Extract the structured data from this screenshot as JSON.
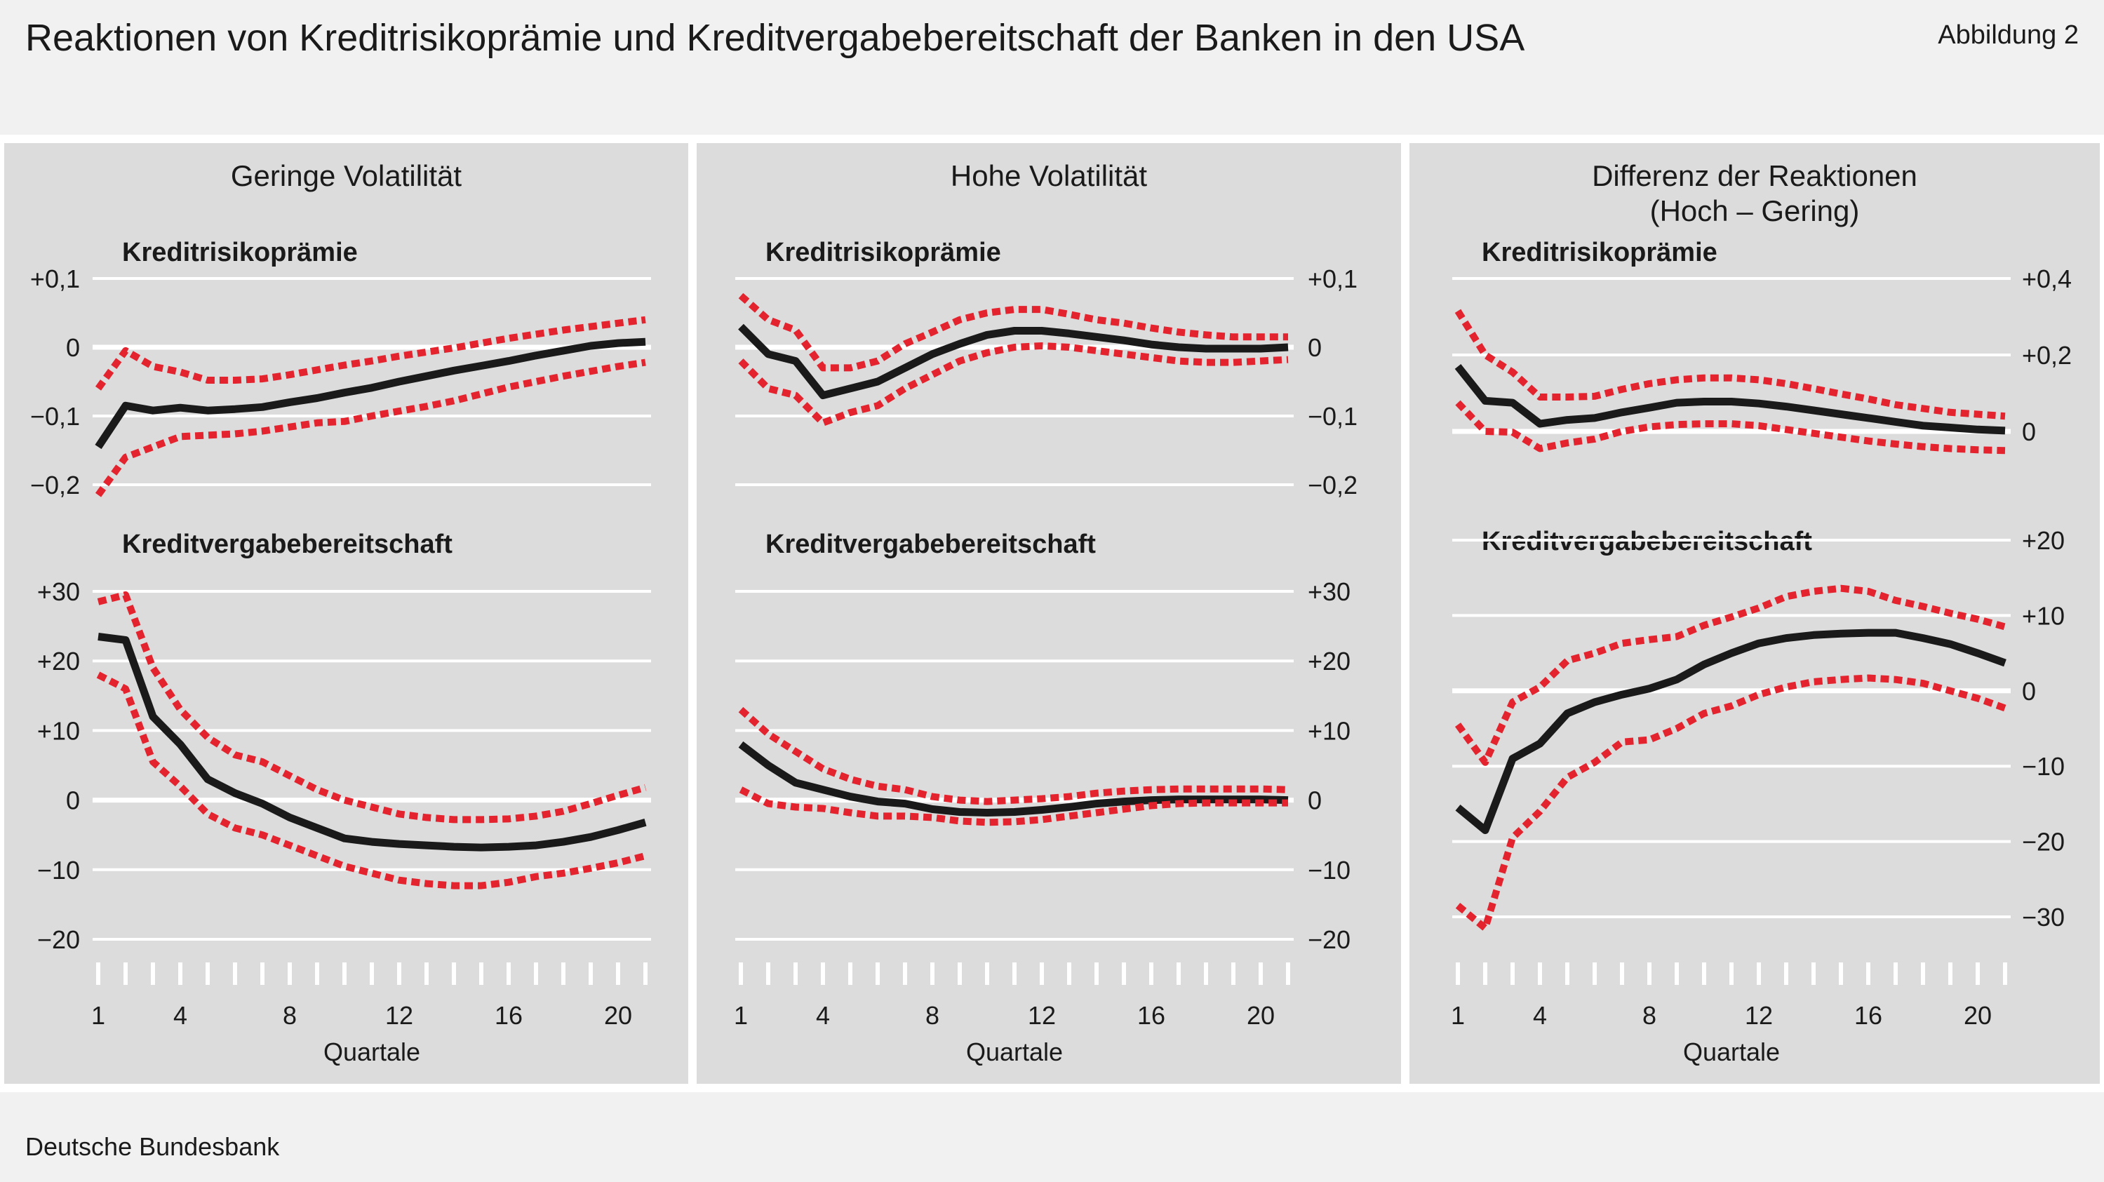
{
  "title": "Reaktionen von Kreditrisikoprämie und Kreditvergabebereitschaft der Banken in den USA",
  "figure_label": "Abbildung 2",
  "source": "Deutsche Bundesbank",
  "colors": {
    "background": "#f1f1f1",
    "panel": "#dcdcdc",
    "gridline": "#ffffff",
    "response": "#1a1a1a",
    "confidence_band": "#e3242f"
  },
  "chart_data": [
    {
      "type": "line",
      "panel_title": "Geringe Volatilität",
      "xlabel": "Quartale",
      "x": [
        1,
        2,
        3,
        4,
        5,
        6,
        7,
        8,
        9,
        10,
        11,
        12,
        13,
        14,
        15,
        16,
        17,
        18,
        19,
        20,
        21
      ],
      "x_ticks": [
        1,
        4,
        8,
        12,
        16,
        20
      ],
      "subcharts": [
        {
          "label": "Kreditrisikoprämie",
          "ylim": [
            -0.2,
            0.1
          ],
          "y_ticks": [
            {
              "value": 0.1,
              "label": "+0,1"
            },
            {
              "value": 0,
              "label": "0"
            },
            {
              "value": -0.1,
              "label": "−0,1"
            },
            {
              "value": -0.2,
              "label": "−0,2"
            }
          ],
          "series": [
            {
              "role": "response",
              "values": [
                -0.145,
                -0.085,
                -0.092,
                -0.088,
                -0.092,
                -0.09,
                -0.087,
                -0.08,
                -0.074,
                -0.066,
                -0.059,
                -0.05,
                -0.042,
                -0.034,
                -0.027,
                -0.02,
                -0.012,
                -0.005,
                0.002,
                0.006,
                0.008
              ]
            },
            {
              "role": "upper",
              "values": [
                -0.06,
                -0.005,
                -0.028,
                -0.036,
                -0.048,
                -0.048,
                -0.046,
                -0.04,
                -0.033,
                -0.026,
                -0.02,
                -0.013,
                -0.007,
                -0.001,
                0.006,
                0.013,
                0.019,
                0.025,
                0.03,
                0.035,
                0.04
              ]
            },
            {
              "role": "lower",
              "values": [
                -0.215,
                -0.16,
                -0.145,
                -0.13,
                -0.128,
                -0.126,
                -0.122,
                -0.116,
                -0.11,
                -0.108,
                -0.1,
                -0.093,
                -0.086,
                -0.078,
                -0.068,
                -0.058,
                -0.05,
                -0.042,
                -0.035,
                -0.028,
                -0.022
              ]
            }
          ]
        },
        {
          "label": "Kreditvergabebereitschaft",
          "ylim": [
            -20,
            30
          ],
          "y_ticks": [
            {
              "value": 30,
              "label": "+30"
            },
            {
              "value": 20,
              "label": "+20"
            },
            {
              "value": 10,
              "label": "+10"
            },
            {
              "value": 0,
              "label": "0"
            },
            {
              "value": -10,
              "label": "−10"
            },
            {
              "value": -20,
              "label": "−20"
            }
          ],
          "series": [
            {
              "role": "response",
              "values": [
                23.5,
                23,
                12,
                8,
                3,
                1,
                -0.5,
                -2.5,
                -4,
                -5.5,
                -6,
                -6.3,
                -6.5,
                -6.7,
                -6.8,
                -6.7,
                -6.5,
                -6,
                -5.3,
                -4.3,
                -3.2
              ]
            },
            {
              "role": "upper",
              "values": [
                28.5,
                29.5,
                19,
                13,
                9,
                6.5,
                5.5,
                3.5,
                1.5,
                0,
                -1,
                -2,
                -2.5,
                -2.8,
                -2.8,
                -2.7,
                -2.3,
                -1.6,
                -0.5,
                0.7,
                1.8
              ]
            },
            {
              "role": "lower",
              "values": [
                18,
                16,
                5.5,
                2,
                -2,
                -4,
                -5,
                -6.5,
                -8,
                -9.5,
                -10.5,
                -11.5,
                -12,
                -12.3,
                -12.3,
                -11.8,
                -11,
                -10.5,
                -9.8,
                -9,
                -8
              ]
            }
          ]
        }
      ]
    },
    {
      "type": "line",
      "panel_title": "Hohe Volatilität",
      "xlabel": "Quartale",
      "x": [
        1,
        2,
        3,
        4,
        5,
        6,
        7,
        8,
        9,
        10,
        11,
        12,
        13,
        14,
        15,
        16,
        17,
        18,
        19,
        20,
        21
      ],
      "x_ticks": [
        1,
        4,
        8,
        12,
        16,
        20
      ],
      "subcharts": [
        {
          "label": "Kreditrisikoprämie",
          "ylim": [
            -0.2,
            0.1
          ],
          "y_ticks": [
            {
              "value": 0.1,
              "label": "+0,1"
            },
            {
              "value": 0,
              "label": "0"
            },
            {
              "value": -0.1,
              "label": "−0,1"
            },
            {
              "value": -0.2,
              "label": "−0,2"
            }
          ],
          "series": [
            {
              "role": "response",
              "values": [
                0.03,
                -0.01,
                -0.02,
                -0.07,
                -0.06,
                -0.05,
                -0.03,
                -0.01,
                0.005,
                0.018,
                0.024,
                0.024,
                0.02,
                0.015,
                0.01,
                0.004,
                0,
                -0.002,
                -0.002,
                -0.002,
                0
              ]
            },
            {
              "role": "upper",
              "values": [
                0.075,
                0.04,
                0.025,
                -0.03,
                -0.03,
                -0.02,
                0.005,
                0.022,
                0.04,
                0.05,
                0.055,
                0.055,
                0.048,
                0.04,
                0.035,
                0.028,
                0.022,
                0.018,
                0.015,
                0.015,
                0.015
              ]
            },
            {
              "role": "lower",
              "values": [
                -0.02,
                -0.06,
                -0.07,
                -0.11,
                -0.095,
                -0.085,
                -0.06,
                -0.04,
                -0.02,
                -0.008,
                0,
                0.002,
                0,
                -0.005,
                -0.01,
                -0.015,
                -0.02,
                -0.022,
                -0.022,
                -0.02,
                -0.018
              ]
            }
          ]
        },
        {
          "label": "Kreditvergabebereitschaft",
          "ylim": [
            -20,
            30
          ],
          "y_ticks": [
            {
              "value": 30,
              "label": "+30"
            },
            {
              "value": 20,
              "label": "+20"
            },
            {
              "value": 10,
              "label": "+10"
            },
            {
              "value": 0,
              "label": "0"
            },
            {
              "value": -10,
              "label": "−10"
            },
            {
              "value": -20,
              "label": "−20"
            }
          ],
          "series": [
            {
              "role": "response",
              "values": [
                8,
                5,
                2.5,
                1.5,
                0.5,
                -0.2,
                -0.5,
                -1.3,
                -1.7,
                -1.8,
                -1.7,
                -1.4,
                -1,
                -0.5,
                -0.2,
                0,
                0.1,
                0.1,
                0.1,
                0.1,
                0
              ]
            },
            {
              "role": "upper",
              "values": [
                13,
                9.5,
                7,
                4.5,
                3,
                2,
                1.5,
                0.5,
                0,
                -0.2,
                0,
                0.2,
                0.5,
                1,
                1.3,
                1.5,
                1.6,
                1.6,
                1.6,
                1.6,
                1.5
              ]
            },
            {
              "role": "lower",
              "values": [
                1.5,
                -0.5,
                -1,
                -1.2,
                -1.8,
                -2.3,
                -2.3,
                -2.5,
                -3,
                -3.2,
                -3.1,
                -2.8,
                -2.3,
                -1.8,
                -1.3,
                -0.8,
                -0.5,
                -0.4,
                -0.4,
                -0.4,
                -0.4
              ]
            }
          ]
        }
      ]
    },
    {
      "type": "line",
      "panel_title_lines": [
        "Differenz der Reaktionen",
        "(Hoch – Gering)"
      ],
      "xlabel": "Quartale",
      "x": [
        1,
        2,
        3,
        4,
        5,
        6,
        7,
        8,
        9,
        10,
        11,
        12,
        13,
        14,
        15,
        16,
        17,
        18,
        19,
        20,
        21
      ],
      "x_ticks": [
        1,
        4,
        8,
        12,
        16,
        20
      ],
      "subcharts": [
        {
          "label": "Kreditrisikoprämie",
          "ylim": [
            0,
            0.4
          ],
          "y_ticks": [
            {
              "value": 0.4,
              "label": "+0,4"
            },
            {
              "value": 0.2,
              "label": "+0,2"
            },
            {
              "value": 0,
              "label": "0"
            }
          ],
          "series": [
            {
              "role": "response",
              "values": [
                0.17,
                0.08,
                0.075,
                0.02,
                0.03,
                0.035,
                0.05,
                0.062,
                0.075,
                0.078,
                0.078,
                0.073,
                0.065,
                0.055,
                0.045,
                0.035,
                0.025,
                0.015,
                0.01,
                0.005,
                0.002
              ]
            },
            {
              "role": "upper",
              "values": [
                0.315,
                0.2,
                0.155,
                0.09,
                0.09,
                0.092,
                0.11,
                0.125,
                0.135,
                0.14,
                0.14,
                0.135,
                0.125,
                0.112,
                0.098,
                0.085,
                0.07,
                0.06,
                0.05,
                0.045,
                0.04
              ]
            },
            {
              "role": "lower",
              "values": [
                0.075,
                0,
                -0.002,
                -0.045,
                -0.03,
                -0.02,
                0,
                0.012,
                0.018,
                0.02,
                0.02,
                0.015,
                0.005,
                -0.005,
                -0.015,
                -0.025,
                -0.033,
                -0.04,
                -0.045,
                -0.048,
                -0.05
              ]
            }
          ]
        },
        {
          "label": "Kreditvergabebereitschaft",
          "ylim": [
            -30,
            20
          ],
          "y_ticks": [
            {
              "value": 20,
              "label": "+20"
            },
            {
              "value": 10,
              "label": "+10"
            },
            {
              "value": 0,
              "label": "0"
            },
            {
              "value": -10,
              "label": "−10"
            },
            {
              "value": -20,
              "label": "−20"
            },
            {
              "value": -30,
              "label": "−30"
            }
          ],
          "series": [
            {
              "role": "response",
              "values": [
                -15.5,
                -18.5,
                -9,
                -7,
                -3,
                -1.5,
                -0.5,
                0.3,
                1.5,
                3.5,
                5,
                6.3,
                7,
                7.4,
                7.6,
                7.7,
                7.7,
                7,
                6.2,
                5,
                3.7
              ]
            },
            {
              "role": "upper",
              "values": [
                -4.5,
                -9.5,
                -1.5,
                0.5,
                4,
                5,
                6.3,
                6.8,
                7.2,
                8.7,
                9.8,
                11,
                12.5,
                13.2,
                13.6,
                13.2,
                12,
                11.2,
                10.3,
                9.5,
                8.5
              ]
            },
            {
              "role": "lower",
              "values": [
                -28.5,
                -31.5,
                -19.5,
                -16,
                -11.5,
                -9.5,
                -6.8,
                -6.5,
                -5,
                -3,
                -2,
                -0.5,
                0.5,
                1.2,
                1.5,
                1.7,
                1.5,
                1,
                0,
                -1,
                -2.3
              ]
            }
          ]
        }
      ]
    }
  ]
}
